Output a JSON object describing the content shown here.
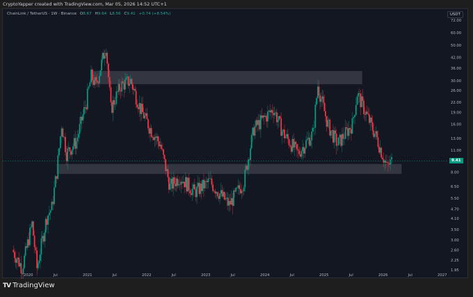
{
  "caption": "CryptoYapper created with TradingView.com, Mar 05, 2026 14:52 UTC+1",
  "legend": {
    "symbol": "ChainLink / TetherUS · 1W · Binance",
    "o_label": "O",
    "o_value": "8.67",
    "h_label": "H",
    "h_value": "9.64",
    "l_label": "L",
    "l_value": "8.56",
    "c_label": "C",
    "c_value": "9.41",
    "change": "+0.74 (+8.54%)"
  },
  "currency_label": "USDT",
  "current_price": "9.41",
  "footer": {
    "logo": "TV",
    "brand": "TradingView"
  },
  "colors": {
    "up": "#089981",
    "down": "#f23645",
    "background": "#131722",
    "zone": "#3a3c45",
    "text": "#b2b5be"
  },
  "chart_data": {
    "type": "candlestick",
    "title": "ChainLink / TetherUS · 1W · Binance",
    "xlabel": "",
    "ylabel": "USDT",
    "scale": "log",
    "ylim": [
      1.8,
      75
    ],
    "y_ticks": [
      "72.00",
      "60.00",
      "50.00",
      "42.00",
      "36.00",
      "30.00",
      "26.00",
      "22.00",
      "19.00",
      "16.00",
      "13.00",
      "11.00",
      "8.00",
      "6.50",
      "5.50",
      "4.70",
      "4.10",
      "3.50",
      "3.00",
      "2.60",
      "2.25",
      "1.95"
    ],
    "x_ticks": [
      "2020",
      "Jul",
      "2021",
      "Jul",
      "2022",
      "Jul",
      "2023",
      "Jul",
      "2024",
      "Jul",
      "2025",
      "Jul",
      "2026",
      "Jul",
      "2027"
    ],
    "last_price": 9.41,
    "zones": [
      {
        "name": "resistance",
        "low": 28.5,
        "high": 34.5,
        "x_start": "2021-02",
        "x_end": "2025-09"
      },
      {
        "name": "support",
        "low": 7.8,
        "high": 9.0,
        "x_start": "2020-07",
        "x_end": "2026-05"
      }
    ],
    "close_path": [
      {
        "t": "2019-10",
        "close": 2.6
      },
      {
        "t": "2019-12",
        "close": 2.0
      },
      {
        "t": "2020-02",
        "close": 3.8
      },
      {
        "t": "2020-03",
        "close": 2.0
      },
      {
        "t": "2020-05",
        "close": 4.2
      },
      {
        "t": "2020-06",
        "close": 4.8
      },
      {
        "t": "2020-07",
        "close": 8.0
      },
      {
        "t": "2020-08",
        "close": 16.0
      },
      {
        "t": "2020-09",
        "close": 10.5
      },
      {
        "t": "2020-11",
        "close": 12.5
      },
      {
        "t": "2021-01",
        "close": 22.0
      },
      {
        "t": "2021-02",
        "close": 32.0
      },
      {
        "t": "2021-03",
        "close": 28.0
      },
      {
        "t": "2021-05",
        "close": 50.0
      },
      {
        "t": "2021-06",
        "close": 20.0
      },
      {
        "t": "2021-08",
        "close": 28.0
      },
      {
        "t": "2021-10",
        "close": 30.0
      },
      {
        "t": "2021-12",
        "close": 20.0
      },
      {
        "t": "2022-02",
        "close": 15.0
      },
      {
        "t": "2022-04",
        "close": 12.0
      },
      {
        "t": "2022-06",
        "close": 6.5
      },
      {
        "t": "2022-08",
        "close": 7.5
      },
      {
        "t": "2022-11",
        "close": 6.0
      },
      {
        "t": "2023-02",
        "close": 7.0
      },
      {
        "t": "2023-06",
        "close": 5.0
      },
      {
        "t": "2023-09",
        "close": 7.0
      },
      {
        "t": "2023-11",
        "close": 15.0
      },
      {
        "t": "2024-03",
        "close": 20.0
      },
      {
        "t": "2024-05",
        "close": 14.0
      },
      {
        "t": "2024-08",
        "close": 10.5
      },
      {
        "t": "2024-11",
        "close": 14.0
      },
      {
        "t": "2024-12",
        "close": 28.0
      },
      {
        "t": "2025-02",
        "close": 16.0
      },
      {
        "t": "2025-04",
        "close": 12.0
      },
      {
        "t": "2025-07",
        "close": 16.0
      },
      {
        "t": "2025-08",
        "close": 25.0
      },
      {
        "t": "2025-10",
        "close": 18.0
      },
      {
        "t": "2025-12",
        "close": 13.0
      },
      {
        "t": "2026-02",
        "close": 8.6
      },
      {
        "t": "2026-03",
        "close": 9.41
      }
    ]
  }
}
